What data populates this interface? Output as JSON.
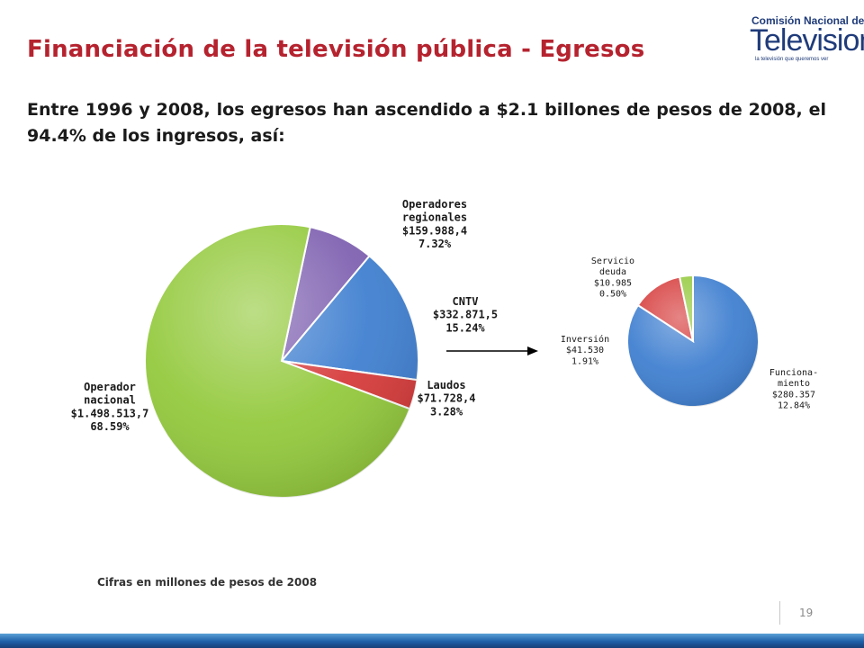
{
  "header": {
    "title": "Financiación de la televisión pública - Egresos",
    "subtitle": "Entre 1996 y 2008, los egresos han ascendido a $2.1 billones de pesos de 2008, el 94.4% de los ingresos, así:"
  },
  "logo": {
    "line1": "Comisión Nacional de",
    "line2": "Television",
    "line3": "la televisión que queremos ver"
  },
  "footnote": "Cifras en millones de pesos de 2008",
  "page_number": "19",
  "chart_data": [
    {
      "type": "pie",
      "title": "",
      "slices": [
        {
          "label": [
            "Operadores",
            "regionales"
          ],
          "amount": "$159.988,4",
          "percent": "7.32%",
          "value": 7.32,
          "color": "#7E60B0"
        },
        {
          "label": [
            "CNTV"
          ],
          "amount": "$332.871,5",
          "percent": "15.24%",
          "value": 15.24,
          "color": "#3F7FD0"
        },
        {
          "label": [
            "Laudos"
          ],
          "amount": "$71.728,4",
          "percent": "3.28%",
          "value": 3.28,
          "color": "#D63A3A"
        },
        {
          "label": [
            "Operador",
            "nacional"
          ],
          "amount": "$1.498.513,7",
          "percent": "68.59%",
          "value": 68.59,
          "color": "#93C93C"
        }
      ]
    },
    {
      "type": "pie",
      "title": "",
      "slices": [
        {
          "label": [
            "Funciona-",
            "miento"
          ],
          "amount": "$280.357",
          "percent": "12.84%",
          "value": 12.84,
          "color": "#3F7FD0"
        },
        {
          "label": [
            "Inversión"
          ],
          "amount": "$41.530",
          "percent": "1.91%",
          "value": 1.91,
          "color": "#D63A3A"
        },
        {
          "label": [
            "Servicio",
            "deuda"
          ],
          "amount": "$10.985",
          "percent": "0.50%",
          "value": 0.5,
          "color": "#93C93C"
        }
      ]
    }
  ]
}
